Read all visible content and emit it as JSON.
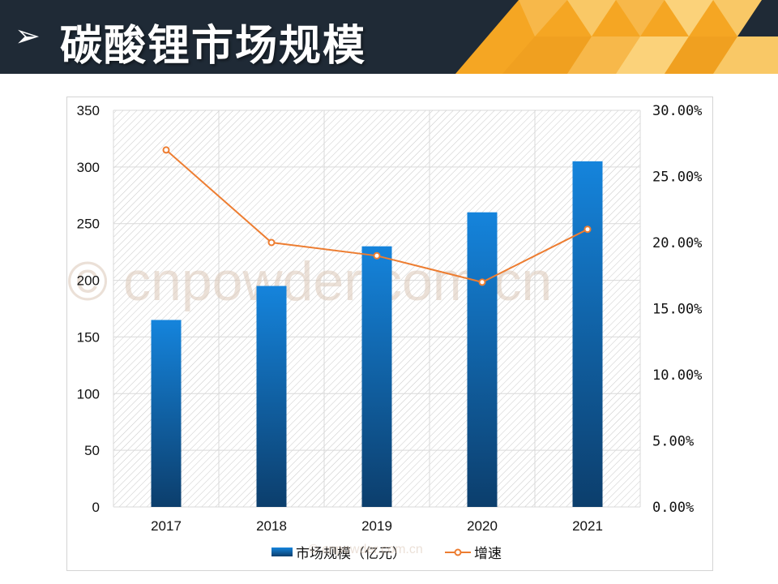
{
  "header": {
    "arrow": "➢",
    "title": "碳酸锂市场规模"
  },
  "watermark": {
    "large": "© cnpowder.com.cn",
    "small": "© cnpowder.com.cn"
  },
  "colors": {
    "header_bg": "#1f2a36",
    "header_accent": "#f5a623",
    "bar_top": "#1584dc",
    "bar_bottom": "#0c3e6c",
    "line": "#ed7d31"
  },
  "chart_data": {
    "type": "bar",
    "categories": [
      "2017",
      "2018",
      "2019",
      "2020",
      "2021"
    ],
    "series": [
      {
        "name": "市场规模（亿元）",
        "type": "bar",
        "axis": "left",
        "values": [
          165,
          195,
          230,
          260,
          305
        ]
      },
      {
        "name": "增速",
        "type": "line",
        "axis": "right",
        "values": [
          0.27,
          0.2,
          0.19,
          0.17,
          0.21
        ]
      }
    ],
    "y_left": {
      "ylim": [
        0,
        350
      ],
      "ticks": [
        "0",
        "50",
        "100",
        "150",
        "200",
        "250",
        "300",
        "350"
      ]
    },
    "y_right": {
      "ylim": [
        0,
        0.3
      ],
      "ticks": [
        "0.00%",
        "5.00%",
        "10.00%",
        "15.00%",
        "20.00%",
        "25.00%",
        "30.00%"
      ]
    },
    "grid": true,
    "legend": "bottom"
  }
}
